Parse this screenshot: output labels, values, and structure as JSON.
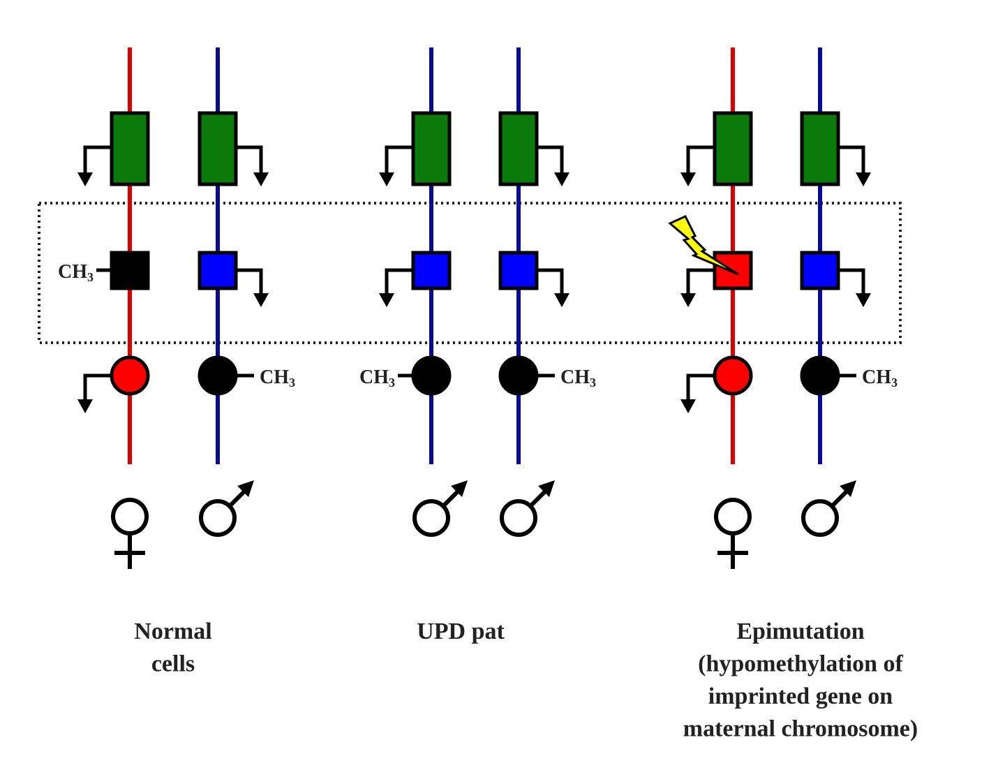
{
  "colors": {
    "maternal": "#e00000",
    "paternal": "#0a0a9a",
    "gene_active": "#0a7a0a",
    "imprinted_paternal_expressed": "#0000ff",
    "unmethylated_maternal": "#ff0000",
    "methylated": "#000000",
    "lightning": "#ffff00"
  },
  "methyl_label": {
    "main": "CH",
    "sub": "3"
  },
  "panels": [
    {
      "label_lines": [
        "Normal",
        "cells"
      ],
      "chromosomes": [
        {
          "parent": "maternal",
          "sex_symbol": "female-symbol",
          "upper_gene": {
            "fill": "gene_active",
            "expression": "left"
          },
          "imprinted_gene": {
            "fill": "methylated",
            "expression": "none",
            "methylated": "left"
          },
          "lower_gene": {
            "fill": "unmethylated_maternal",
            "expression": "left"
          }
        },
        {
          "parent": "paternal",
          "sex_symbol": "male-symbol",
          "upper_gene": {
            "fill": "gene_active",
            "expression": "right"
          },
          "imprinted_gene": {
            "fill": "imprinted_paternal_expressed",
            "expression": "right"
          },
          "lower_gene": {
            "fill": "methylated",
            "expression": "none",
            "methylated": "right"
          }
        }
      ]
    },
    {
      "label_lines": [
        "UPD pat"
      ],
      "chromosomes": [
        {
          "parent": "paternal",
          "sex_symbol": "male-symbol",
          "upper_gene": {
            "fill": "gene_active",
            "expression": "left"
          },
          "imprinted_gene": {
            "fill": "imprinted_paternal_expressed",
            "expression": "left"
          },
          "lower_gene": {
            "fill": "methylated",
            "expression": "none",
            "methylated": "left"
          }
        },
        {
          "parent": "paternal",
          "sex_symbol": "male-symbol",
          "upper_gene": {
            "fill": "gene_active",
            "expression": "right"
          },
          "imprinted_gene": {
            "fill": "imprinted_paternal_expressed",
            "expression": "right"
          },
          "lower_gene": {
            "fill": "methylated",
            "expression": "none",
            "methylated": "right"
          }
        }
      ]
    },
    {
      "label_lines": [
        "Epimutation",
        "(hypomethylation of",
        "imprinted gene on",
        "maternal chromosome)"
      ],
      "chromosomes": [
        {
          "parent": "maternal",
          "sex_symbol": "female-symbol",
          "upper_gene": {
            "fill": "gene_active",
            "expression": "left"
          },
          "imprinted_gene": {
            "fill": "unmethylated_maternal",
            "expression": "left",
            "epimutation": true
          },
          "lower_gene": {
            "fill": "unmethylated_maternal",
            "expression": "left"
          }
        },
        {
          "parent": "paternal",
          "sex_symbol": "male-symbol",
          "upper_gene": {
            "fill": "gene_active",
            "expression": "right"
          },
          "imprinted_gene": {
            "fill": "imprinted_paternal_expressed",
            "expression": "right"
          },
          "lower_gene": {
            "fill": "methylated",
            "expression": "none",
            "methylated": "right"
          }
        }
      ]
    }
  ]
}
